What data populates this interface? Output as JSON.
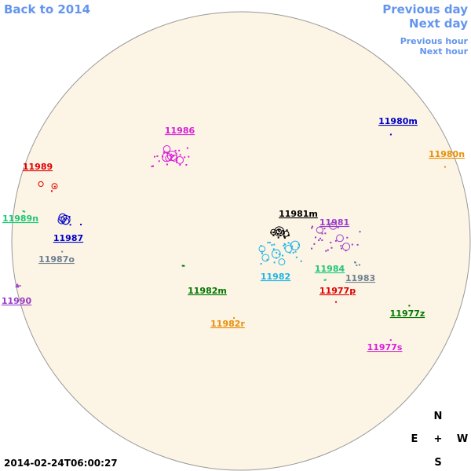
{
  "navigation": {
    "back": "Back to 2014",
    "previous_day": "Previous day",
    "next_day": "Next day",
    "previous_hour": "Previous hour",
    "next_hour": "Next hour"
  },
  "regions": [
    {
      "label": "11986",
      "color": "#d81ed8"
    },
    {
      "label": "11980m",
      "color": "#0000c8"
    },
    {
      "label": "11980n",
      "color": "#e8900a"
    },
    {
      "label": "11989",
      "color": "#e00000"
    },
    {
      "label": "11989n",
      "color": "#1ec878"
    },
    {
      "label": "11987",
      "color": "#0000c8"
    },
    {
      "label": "11987o",
      "color": "#708090"
    },
    {
      "label": "11990",
      "color": "#9a3cc8"
    },
    {
      "label": "11981m",
      "color": "#000000"
    },
    {
      "label": "11981",
      "color": "#9a3cc8"
    },
    {
      "label": "11982",
      "color": "#1eb4e6"
    },
    {
      "label": "11984",
      "color": "#1ec878"
    },
    {
      "label": "11983",
      "color": "#708090"
    },
    {
      "label": "11977p",
      "color": "#e00000"
    },
    {
      "label": "11982m",
      "color": "#007800"
    },
    {
      "label": "11982r",
      "color": "#e8900a"
    },
    {
      "label": "11977z",
      "color": "#007800"
    },
    {
      "label": "11977s",
      "color": "#d81ed8"
    }
  ],
  "compass": {
    "north": "N",
    "east": "E",
    "center": "+",
    "west": "W",
    "south": "S"
  },
  "timestamp": "2014-02-24T06:00:27"
}
